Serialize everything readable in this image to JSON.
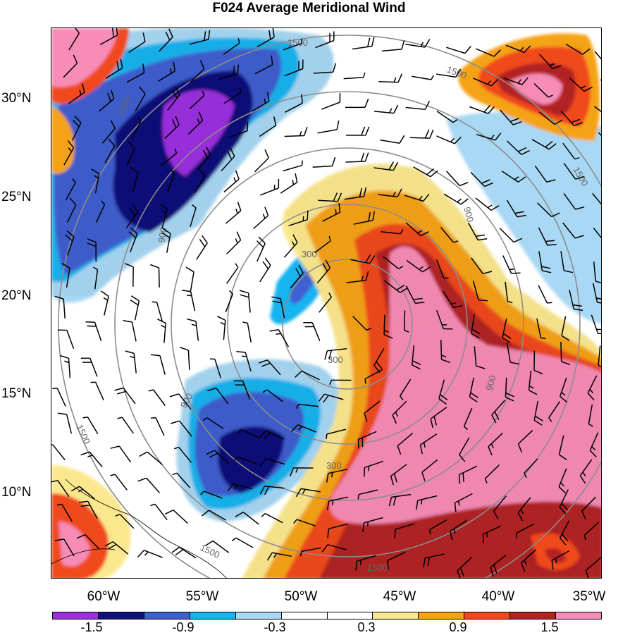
{
  "title": "F024 Average Meridional Wind",
  "lat_labels": [
    "30°N",
    "25°N",
    "20°N",
    "15°N",
    "10°N"
  ],
  "lon_labels": [
    "60°W",
    "55°W",
    "50°W",
    "45°W",
    "40°W",
    "35°W"
  ],
  "contour_labels": [
    "1500",
    "1500",
    "1500",
    "1500",
    "900",
    "900",
    "900",
    "900",
    "300",
    "300",
    "300",
    "1500",
    "1500",
    "1500"
  ],
  "colorbar": {
    "labels": [
      "-1.5",
      "-0.9",
      "-0.3",
      "0.3",
      "0.9",
      "1.5"
    ],
    "colors": [
      "#9b30e0",
      "#10107a",
      "#3f5ed0",
      "#19b4f0",
      "#a8d8f4",
      "#ffffff",
      "#ffffff",
      "#fbe88e",
      "#f5a312",
      "#f04a1b",
      "#b22222",
      "#f78cb6"
    ]
  }
}
